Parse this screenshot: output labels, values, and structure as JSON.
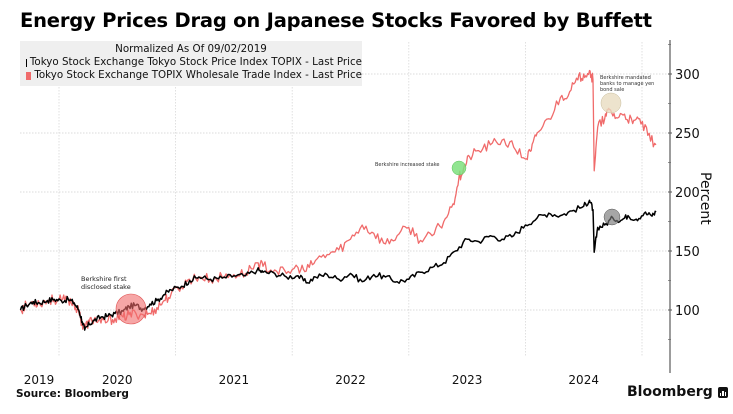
{
  "title": "Energy Prices Drag on Japanese Stocks Favored by Buffett",
  "legend": {
    "header": "Normalized As Of 09/02/2019",
    "items": [
      {
        "label": "Tokyo Stock Exchange Tokyo Stock Price Index TOPIX - Last Price",
        "color": "#000000"
      },
      {
        "label": "Tokyo Stock Exchange TOPIX Wholesale Trade Index - Last Price",
        "color": "#f06b6b"
      }
    ]
  },
  "source": "Source: Bloomberg",
  "brand": "Bloomberg",
  "chart_data": {
    "type": "line",
    "title": "Energy Prices Drag on Japanese Stocks Favored by Buffett",
    "xlabel": "",
    "ylabel": "Percent",
    "xlim": [
      2019.67,
      2025.2
    ],
    "ylim": [
      62,
      328
    ],
    "grid": true,
    "legend_position": "top-left",
    "x_tick_labels": [
      "2019",
      "2020",
      "2021",
      "2022",
      "2023",
      "2024"
    ],
    "y_ticks": [
      100,
      150,
      200,
      250,
      300
    ],
    "series": [
      {
        "name": "Tokyo Stock Exchange Tokyo Stock Price Index TOPIX - Last Price",
        "color": "#000000",
        "x": [
          2019.67,
          2019.72,
          2019.78,
          2019.83,
          2019.9,
          2019.96,
          2020.02,
          2020.08,
          2020.13,
          2020.17,
          2020.2,
          2020.22,
          2020.26,
          2020.3,
          2020.36,
          2020.42,
          2020.48,
          2020.55,
          2020.6,
          2020.66,
          2020.72,
          2020.78,
          2020.84,
          2020.9,
          2020.96,
          2021.05,
          2021.12,
          2021.2,
          2021.3,
          2021.4,
          2021.5,
          2021.6,
          2021.7,
          2021.75,
          2021.85,
          2021.95,
          2022.05,
          2022.12,
          2022.2,
          2022.3,
          2022.4,
          2022.5,
          2022.6,
          2022.7,
          2022.8,
          2022.9,
          2023.0,
          2023.1,
          2023.2,
          2023.3,
          2023.4,
          2023.5,
          2023.6,
          2023.7,
          2023.8,
          2023.9,
          2024.0,
          2024.1,
          2024.2,
          2024.3,
          2024.4,
          2024.5,
          2024.55,
          2024.58,
          2024.59,
          2024.62,
          2024.68,
          2024.75,
          2024.82,
          2024.88,
          2024.95,
          2025.02,
          2025.08,
          2025.12
        ],
        "values": [
          100,
          104,
          107,
          106,
          108,
          109,
          108,
          109,
          106,
          100,
          90,
          83,
          88,
          91,
          94,
          95,
          97,
          99,
          103,
          104,
          101,
          105,
          108,
          113,
          117,
          120,
          125,
          128,
          126,
          127,
          129,
          129,
          134,
          132,
          131,
          128,
          129,
          123,
          128,
          130,
          126,
          131,
          124,
          130,
          128,
          124,
          126,
          132,
          136,
          140,
          150,
          160,
          158,
          163,
          160,
          163,
          172,
          178,
          182,
          180,
          184,
          188,
          193,
          185,
          149,
          170,
          172,
          178,
          176,
          180,
          177,
          182,
          180,
          183
        ]
      },
      {
        "name": "Tokyo Stock Exchange TOPIX Wholesale Trade Index - Last Price",
        "color": "#f06b6b",
        "x": [
          2019.67,
          2019.72,
          2019.78,
          2019.83,
          2019.9,
          2019.96,
          2020.02,
          2020.08,
          2020.13,
          2020.17,
          2020.2,
          2020.22,
          2020.26,
          2020.3,
          2020.36,
          2020.42,
          2020.48,
          2020.55,
          2020.6,
          2020.66,
          2020.72,
          2020.78,
          2020.84,
          2020.9,
          2020.96,
          2021.05,
          2021.12,
          2021.2,
          2021.3,
          2021.4,
          2021.5,
          2021.6,
          2021.7,
          2021.75,
          2021.85,
          2021.95,
          2022.05,
          2022.12,
          2022.2,
          2022.3,
          2022.4,
          2022.5,
          2022.6,
          2022.7,
          2022.8,
          2022.9,
          2023.0,
          2023.1,
          2023.2,
          2023.3,
          2023.38,
          2023.43,
          2023.47,
          2023.52,
          2023.6,
          2023.7,
          2023.8,
          2023.9,
          2024.0,
          2024.05,
          2024.1,
          2024.2,
          2024.3,
          2024.38,
          2024.45,
          2024.5,
          2024.55,
          2024.58,
          2024.59,
          2024.62,
          2024.68,
          2024.72,
          2024.78,
          2024.85,
          2024.92,
          2024.98,
          2025.05,
          2025.12
        ],
        "values": [
          100,
          104,
          107,
          106,
          108,
          109,
          108,
          109,
          105,
          98,
          88,
          85,
          90,
          92,
          89,
          91,
          93,
          94,
          96,
          97,
          96,
          97,
          102,
          108,
          113,
          120,
          126,
          128,
          126,
          128,
          130,
          131,
          140,
          137,
          134,
          131,
          136,
          133,
          142,
          147,
          151,
          160,
          172,
          165,
          156,
          163,
          170,
          159,
          163,
          175,
          190,
          212,
          220,
          230,
          235,
          240,
          244,
          238,
          228,
          235,
          250,
          262,
          280,
          285,
          295,
          300,
          303,
          295,
          218,
          255,
          262,
          270,
          263,
          266,
          258,
          262,
          248,
          240
        ]
      }
    ],
    "annotations": [
      {
        "text": "Berkshire first disclosed stake",
        "x": 2020.23,
        "series": "both",
        "color": "#f06b6b"
      },
      {
        "text": "Berkshire increased stake",
        "x": 2023.43,
        "series": "Wholesale",
        "color": "#7ee07e"
      },
      {
        "text": "Berkshire mandated banks to manage yen bond sale",
        "x": 2024.73,
        "series": "both",
        "color_red_series": "#e8dcc0",
        "color_black_series": "#777777"
      }
    ]
  }
}
